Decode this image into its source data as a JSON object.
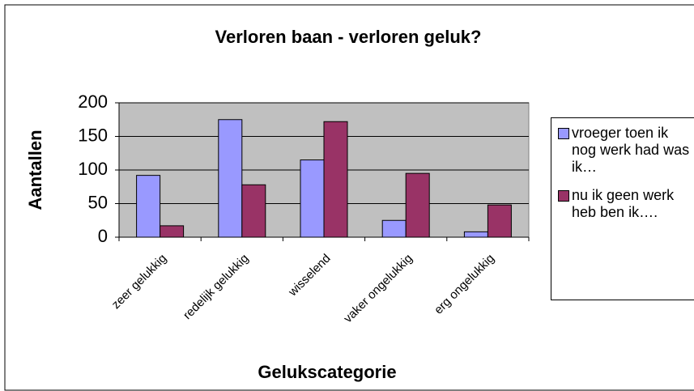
{
  "chart_data": {
    "type": "bar",
    "title": "Verloren baan - verloren geluk?",
    "x_label": "Gelukscategorie",
    "y_label": "Aantallen",
    "categories": [
      "zeer gelukkig",
      "redelijk gelukkig",
      "wisselend",
      "vaker ongelukkig",
      "erg ongelukkig"
    ],
    "series": [
      {
        "name": "vroeger toen ik nog werk had was ik…",
        "color": "#9999ff",
        "values": [
          92,
          175,
          115,
          25,
          8
        ]
      },
      {
        "name": "nu ik geen werk heb ben ik….",
        "color": "#993366",
        "values": [
          17,
          78,
          172,
          95,
          48
        ]
      }
    ],
    "ylim": [
      0,
      200
    ],
    "yticks": [
      0,
      50,
      100,
      150,
      200
    ],
    "legend": "right"
  }
}
